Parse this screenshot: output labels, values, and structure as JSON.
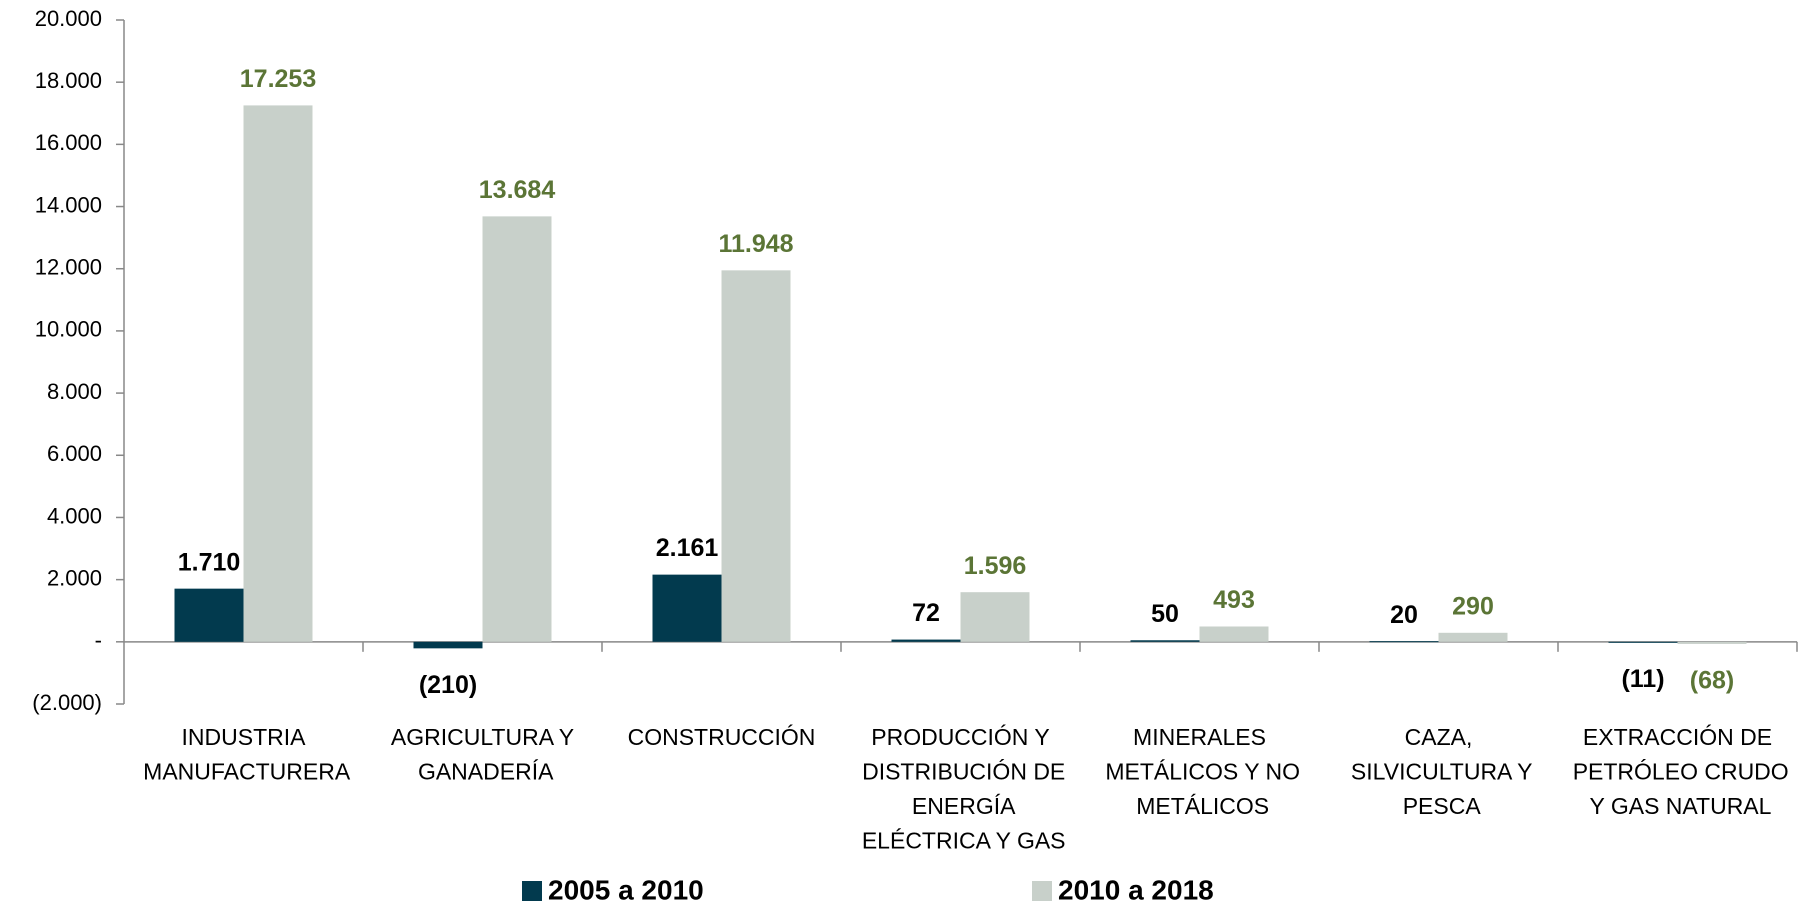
{
  "chart_data": {
    "type": "bar",
    "categories": [
      "INDUSTRIA MANUFACTURERA",
      "AGRICULTURA Y GANADERÍA",
      "CONSTRUCCIÓN",
      "PRODUCCIÓN Y DISTRIBUCIÓN DE ENERGÍA ELÉCTRICA Y GAS",
      "MINERALES METÁLICOS Y NO METÁLICOS",
      "CAZA, SILVICULTURA Y PESCA",
      "EXTRACCIÓN DE PETRÓLEO CRUDO Y GAS NATURAL"
    ],
    "series": [
      {
        "name": "2005 a 2010",
        "color": "#023a4e",
        "label_color": "#000000",
        "values": [
          1710,
          -210,
          2161,
          72,
          50,
          20,
          -11
        ],
        "value_labels": [
          "1.710",
          "(210)",
          "2.161",
          "72",
          "50",
          "20",
          "(11)"
        ]
      },
      {
        "name": "2010 a 2018",
        "color": "#c8d0ca",
        "label_color": "#5b7536",
        "values": [
          17253,
          13684,
          11948,
          1596,
          493,
          290,
          -68
        ],
        "value_labels": [
          "17.253",
          "13.684",
          "11.948",
          "1.596",
          "493",
          "290",
          "(68)"
        ]
      }
    ],
    "ylim": [
      -2000,
      20000
    ],
    "yticks": [
      {
        "value": -2000,
        "label": "(2.000)"
      },
      {
        "value": 0,
        "label": "-"
      },
      {
        "value": 2000,
        "label": "2.000"
      },
      {
        "value": 4000,
        "label": "4.000"
      },
      {
        "value": 6000,
        "label": "6.000"
      },
      {
        "value": 8000,
        "label": "8.000"
      },
      {
        "value": 10000,
        "label": "10.000"
      },
      {
        "value": 12000,
        "label": "12.000"
      },
      {
        "value": 14000,
        "label": "14.000"
      },
      {
        "value": 16000,
        "label": "16.000"
      },
      {
        "value": 18000,
        "label": "18.000"
      },
      {
        "value": 20000,
        "label": "20.000"
      }
    ],
    "grid": false,
    "legend": "bottom"
  }
}
